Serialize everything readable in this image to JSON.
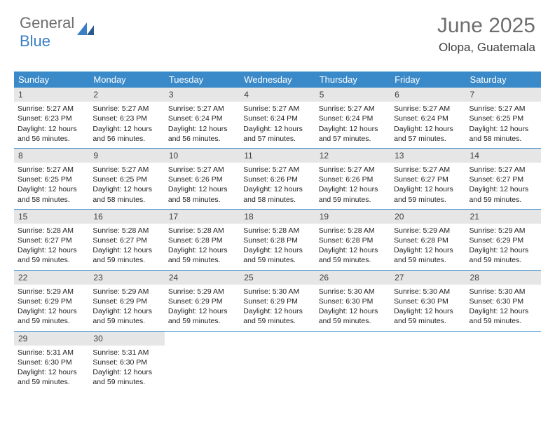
{
  "logo": {
    "text_gray": "General",
    "text_blue": "Blue"
  },
  "title": {
    "month": "June 2025",
    "location": "Olopa, Guatemala"
  },
  "colors": {
    "header_bg": "#3a8ac9",
    "header_text": "#ffffff",
    "daynum_bg": "#e6e6e6",
    "border": "#3a8ac9",
    "logo_gray": "#6e6e6e",
    "logo_blue": "#3a7fc4"
  },
  "days_of_week": [
    "Sunday",
    "Monday",
    "Tuesday",
    "Wednesday",
    "Thursday",
    "Friday",
    "Saturday"
  ],
  "weeks": [
    [
      {
        "n": "1",
        "sr": "5:27 AM",
        "ss": "6:23 PM",
        "dl": "12 hours and 56 minutes."
      },
      {
        "n": "2",
        "sr": "5:27 AM",
        "ss": "6:23 PM",
        "dl": "12 hours and 56 minutes."
      },
      {
        "n": "3",
        "sr": "5:27 AM",
        "ss": "6:24 PM",
        "dl": "12 hours and 56 minutes."
      },
      {
        "n": "4",
        "sr": "5:27 AM",
        "ss": "6:24 PM",
        "dl": "12 hours and 57 minutes."
      },
      {
        "n": "5",
        "sr": "5:27 AM",
        "ss": "6:24 PM",
        "dl": "12 hours and 57 minutes."
      },
      {
        "n": "6",
        "sr": "5:27 AM",
        "ss": "6:24 PM",
        "dl": "12 hours and 57 minutes."
      },
      {
        "n": "7",
        "sr": "5:27 AM",
        "ss": "6:25 PM",
        "dl": "12 hours and 58 minutes."
      }
    ],
    [
      {
        "n": "8",
        "sr": "5:27 AM",
        "ss": "6:25 PM",
        "dl": "12 hours and 58 minutes."
      },
      {
        "n": "9",
        "sr": "5:27 AM",
        "ss": "6:25 PM",
        "dl": "12 hours and 58 minutes."
      },
      {
        "n": "10",
        "sr": "5:27 AM",
        "ss": "6:26 PM",
        "dl": "12 hours and 58 minutes."
      },
      {
        "n": "11",
        "sr": "5:27 AM",
        "ss": "6:26 PM",
        "dl": "12 hours and 58 minutes."
      },
      {
        "n": "12",
        "sr": "5:27 AM",
        "ss": "6:26 PM",
        "dl": "12 hours and 59 minutes."
      },
      {
        "n": "13",
        "sr": "5:27 AM",
        "ss": "6:27 PM",
        "dl": "12 hours and 59 minutes."
      },
      {
        "n": "14",
        "sr": "5:27 AM",
        "ss": "6:27 PM",
        "dl": "12 hours and 59 minutes."
      }
    ],
    [
      {
        "n": "15",
        "sr": "5:28 AM",
        "ss": "6:27 PM",
        "dl": "12 hours and 59 minutes."
      },
      {
        "n": "16",
        "sr": "5:28 AM",
        "ss": "6:27 PM",
        "dl": "12 hours and 59 minutes."
      },
      {
        "n": "17",
        "sr": "5:28 AM",
        "ss": "6:28 PM",
        "dl": "12 hours and 59 minutes."
      },
      {
        "n": "18",
        "sr": "5:28 AM",
        "ss": "6:28 PM",
        "dl": "12 hours and 59 minutes."
      },
      {
        "n": "19",
        "sr": "5:28 AM",
        "ss": "6:28 PM",
        "dl": "12 hours and 59 minutes."
      },
      {
        "n": "20",
        "sr": "5:29 AM",
        "ss": "6:28 PM",
        "dl": "12 hours and 59 minutes."
      },
      {
        "n": "21",
        "sr": "5:29 AM",
        "ss": "6:29 PM",
        "dl": "12 hours and 59 minutes."
      }
    ],
    [
      {
        "n": "22",
        "sr": "5:29 AM",
        "ss": "6:29 PM",
        "dl": "12 hours and 59 minutes."
      },
      {
        "n": "23",
        "sr": "5:29 AM",
        "ss": "6:29 PM",
        "dl": "12 hours and 59 minutes."
      },
      {
        "n": "24",
        "sr": "5:29 AM",
        "ss": "6:29 PM",
        "dl": "12 hours and 59 minutes."
      },
      {
        "n": "25",
        "sr": "5:30 AM",
        "ss": "6:29 PM",
        "dl": "12 hours and 59 minutes."
      },
      {
        "n": "26",
        "sr": "5:30 AM",
        "ss": "6:30 PM",
        "dl": "12 hours and 59 minutes."
      },
      {
        "n": "27",
        "sr": "5:30 AM",
        "ss": "6:30 PM",
        "dl": "12 hours and 59 minutes."
      },
      {
        "n": "28",
        "sr": "5:30 AM",
        "ss": "6:30 PM",
        "dl": "12 hours and 59 minutes."
      }
    ],
    [
      {
        "n": "29",
        "sr": "5:31 AM",
        "ss": "6:30 PM",
        "dl": "12 hours and 59 minutes."
      },
      {
        "n": "30",
        "sr": "5:31 AM",
        "ss": "6:30 PM",
        "dl": "12 hours and 59 minutes."
      },
      null,
      null,
      null,
      null,
      null
    ]
  ],
  "labels": {
    "sunrise": "Sunrise:",
    "sunset": "Sunset:",
    "daylight": "Daylight:"
  }
}
